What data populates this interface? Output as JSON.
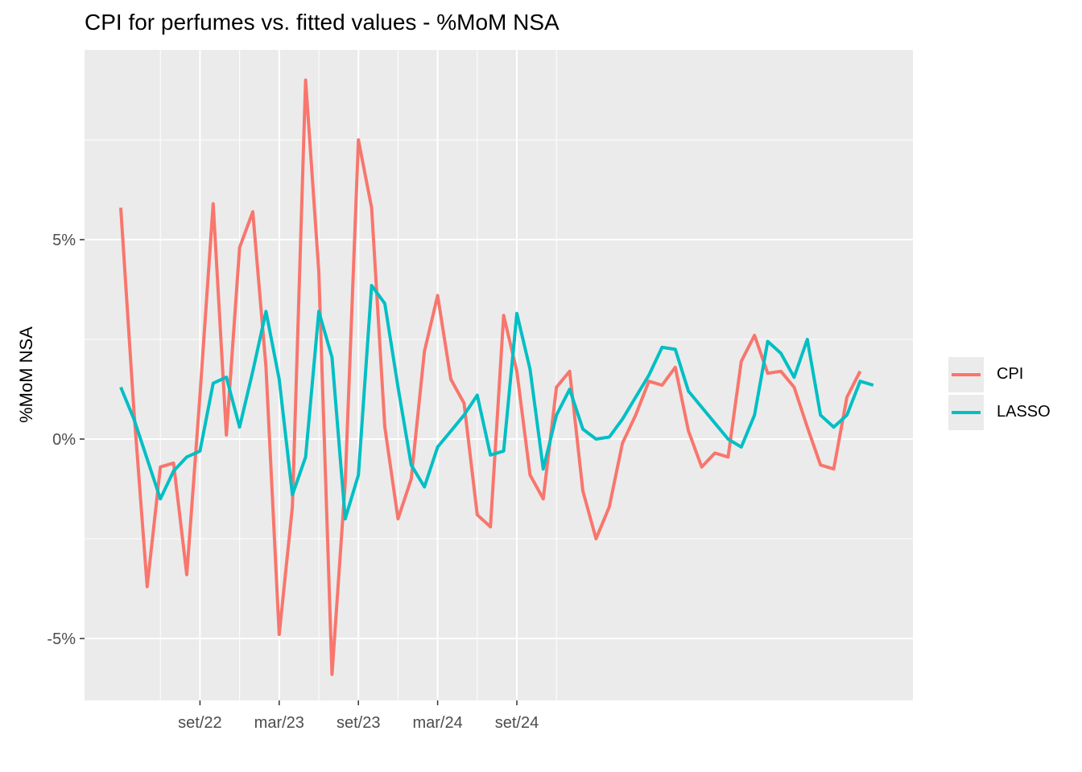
{
  "chart_data": {
    "type": "line",
    "title": "CPI for perfumes vs. fitted values - %MoM NSA",
    "xlabel": "",
    "ylabel": "%MoM NSA",
    "x_tick_labels": [
      "set/22",
      "mar/23",
      "set/23",
      "mar/24",
      "set/24"
    ],
    "y_tick_labels": [
      "-5%",
      "0%",
      "5%"
    ],
    "y_ticks": [
      -5,
      0,
      5
    ],
    "ylim": [
      -6.5,
      9.8
    ],
    "x_start_month": "2022-03",
    "grid": true,
    "legend_position": "right",
    "series": [
      {
        "name": "CPI",
        "color": "#F8766D",
        "values": [
          5.8,
          0.7,
          -3.7,
          -0.7,
          -0.6,
          -3.4,
          1.1,
          5.9,
          0.1,
          4.8,
          5.7,
          1.8,
          -4.9,
          -1.7,
          9.0,
          4.2,
          -5.9,
          -1.1,
          7.5,
          5.8,
          0.3,
          -2.0,
          -1.0,
          2.2,
          3.6,
          1.5,
          0.9,
          -1.9,
          -2.2,
          3.1,
          1.7,
          -0.9,
          -1.5,
          1.3,
          1.7,
          -1.3,
          -2.5,
          -1.7,
          -0.1,
          0.6,
          1.45,
          1.35,
          1.8,
          0.2,
          -0.7,
          -0.35,
          -0.45,
          1.95,
          2.6,
          1.65,
          1.7,
          1.3,
          0.3,
          -0.65,
          -0.75,
          1.05,
          1.7
        ]
      },
      {
        "name": "LASSO",
        "color": "#00BFC4",
        "values": [
          1.3,
          0.5,
          -0.5,
          -1.5,
          -0.8,
          -0.45,
          -0.3,
          1.4,
          1.55,
          0.3,
          1.7,
          3.2,
          1.5,
          -1.4,
          -0.45,
          3.2,
          2.05,
          -2.0,
          -0.9,
          3.85,
          3.4,
          1.3,
          -0.65,
          -1.2,
          -0.2,
          0.2,
          0.6,
          1.1,
          -0.4,
          -0.3,
          3.15,
          1.75,
          -0.75,
          0.6,
          1.25,
          0.25,
          0.0,
          0.05,
          0.5,
          1.05,
          1.6,
          2.3,
          2.25,
          1.2,
          0.8,
          0.4,
          0.0,
          -0.2,
          0.6,
          2.45,
          2.15,
          1.55,
          2.5,
          0.6,
          0.3,
          0.6,
          1.45,
          1.35
        ]
      }
    ]
  }
}
